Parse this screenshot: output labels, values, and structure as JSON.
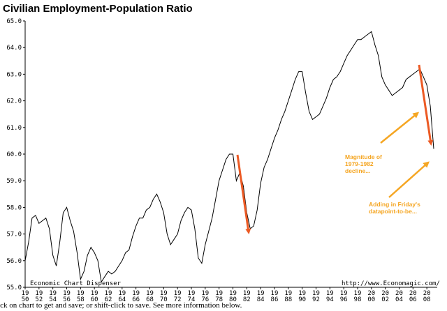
{
  "chart_data": {
    "type": "line",
    "title": "Civilian Employment-Population Ratio",
    "xlabel": "",
    "ylabel": "",
    "ylim": [
      55.0,
      65.0
    ],
    "xlim": [
      1950,
      2009.5
    ],
    "y_ticks": [
      "65.0",
      "64.0",
      "63.0",
      "62.0",
      "61.0",
      "60.0",
      "59.0",
      "58.0",
      "57.0",
      "56.0",
      "55.0"
    ],
    "x_ticks": [
      {
        "top": "19",
        "bottom": "50"
      },
      {
        "top": "19",
        "bottom": "52"
      },
      {
        "top": "19",
        "bottom": "54"
      },
      {
        "top": "19",
        "bottom": "56"
      },
      {
        "top": "19",
        "bottom": "58"
      },
      {
        "top": "19",
        "bottom": "60"
      },
      {
        "top": "19",
        "bottom": "62"
      },
      {
        "top": "19",
        "bottom": "64"
      },
      {
        "top": "19",
        "bottom": "66"
      },
      {
        "top": "19",
        "bottom": "68"
      },
      {
        "top": "19",
        "bottom": "70"
      },
      {
        "top": "19",
        "bottom": "72"
      },
      {
        "top": "19",
        "bottom": "74"
      },
      {
        "top": "19",
        "bottom": "76"
      },
      {
        "top": "19",
        "bottom": "78"
      },
      {
        "top": "19",
        "bottom": "80"
      },
      {
        "top": "19",
        "bottom": "82"
      },
      {
        "top": "19",
        "bottom": "84"
      },
      {
        "top": "19",
        "bottom": "86"
      },
      {
        "top": "19",
        "bottom": "88"
      },
      {
        "top": "19",
        "bottom": "90"
      },
      {
        "top": "19",
        "bottom": "92"
      },
      {
        "top": "19",
        "bottom": "94"
      },
      {
        "top": "19",
        "bottom": "96"
      },
      {
        "top": "19",
        "bottom": "98"
      },
      {
        "top": "20",
        "bottom": "00"
      },
      {
        "top": "20",
        "bottom": "02"
      },
      {
        "top": "20",
        "bottom": "04"
      },
      {
        "top": "20",
        "bottom": "06"
      },
      {
        "top": "20",
        "bottom": "08"
      }
    ],
    "grid": false,
    "series": [
      {
        "x": [
          1950.0,
          1950.5,
          1951.0,
          1951.5,
          1952.0,
          1952.5,
          1953.0,
          1953.5,
          1954.0,
          1954.5,
          1955.0,
          1955.5,
          1956.0,
          1956.5,
          1957.0,
          1957.5,
          1958.0,
          1958.5,
          1959.0,
          1959.5,
          1960.0,
          1960.5,
          1961.0,
          1961.5,
          1962.0,
          1962.5,
          1963.0,
          1963.5,
          1964.0,
          1964.5,
          1965.0,
          1965.5,
          1966.0,
          1966.5,
          1967.0,
          1967.5,
          1968.0,
          1968.5,
          1969.0,
          1969.5,
          1970.0,
          1970.5,
          1971.0,
          1971.5,
          1972.0,
          1972.5,
          1973.0,
          1973.5,
          1974.0,
          1974.5,
          1975.0,
          1975.5,
          1976.0,
          1976.5,
          1977.0,
          1977.5,
          1978.0,
          1978.5,
          1979.0,
          1979.5,
          1980.0,
          1980.5,
          1981.0,
          1981.5,
          1982.0,
          1982.5,
          1983.0,
          1983.5,
          1984.0,
          1984.5,
          1985.0,
          1985.5,
          1986.0,
          1986.5,
          1987.0,
          1987.5,
          1988.0,
          1988.5,
          1989.0,
          1989.5,
          1990.0,
          1990.5,
          1991.0,
          1991.5,
          1992.0,
          1992.5,
          1993.0,
          1993.5,
          1994.0,
          1994.5,
          1995.0,
          1995.5,
          1996.0,
          1996.5,
          1997.0,
          1997.5,
          1998.0,
          1998.5,
          1999.0,
          1999.5,
          2000.0,
          2000.5,
          2001.0,
          2001.5,
          2002.0,
          2002.5,
          2003.0,
          2003.5,
          2004.0,
          2004.5,
          2005.0,
          2005.5,
          2006.0,
          2006.5,
          2007.0,
          2007.5,
          2008.0,
          2008.5,
          2009.0
        ],
        "values": [
          56.0,
          56.7,
          57.6,
          57.7,
          57.4,
          57.5,
          57.6,
          57.2,
          56.2,
          55.8,
          56.7,
          57.8,
          58.0,
          57.5,
          57.1,
          56.3,
          55.3,
          55.6,
          56.2,
          56.5,
          56.3,
          56.0,
          55.2,
          55.4,
          55.6,
          55.5,
          55.6,
          55.8,
          56.0,
          56.3,
          56.4,
          56.9,
          57.3,
          57.6,
          57.6,
          57.9,
          58.0,
          58.3,
          58.5,
          58.2,
          57.8,
          57.0,
          56.6,
          56.8,
          57.0,
          57.5,
          57.8,
          58.0,
          57.9,
          57.2,
          56.1,
          55.9,
          56.6,
          57.1,
          57.6,
          58.3,
          59.0,
          59.4,
          59.8,
          60.0,
          60.0,
          59.0,
          59.3,
          58.8,
          57.8,
          57.2,
          57.3,
          57.9,
          58.9,
          59.5,
          59.8,
          60.2,
          60.6,
          60.9,
          61.3,
          61.6,
          62.0,
          62.4,
          62.8,
          63.1,
          63.1,
          62.3,
          61.6,
          61.3,
          61.4,
          61.5,
          61.8,
          62.1,
          62.5,
          62.8,
          62.9,
          63.1,
          63.4,
          63.7,
          63.9,
          64.1,
          64.3,
          64.3,
          64.4,
          64.5,
          64.6,
          64.1,
          63.7,
          62.9,
          62.6,
          62.4,
          62.2,
          62.3,
          62.4,
          62.5,
          62.8,
          62.9,
          63.0,
          63.1,
          63.2,
          62.9,
          62.6,
          61.8,
          60.2
        ]
      }
    ],
    "watermark_left": "Economic Chart Dispenser",
    "watermark_right": "http://www.Economagic.com/",
    "annotations": [
      {
        "lines": [
          "Magnitude of",
          "1979-1982",
          "decline..."
        ]
      },
      {
        "lines": [
          "Adding in Friday's",
          "datapoint-to-be..."
        ]
      }
    ],
    "colors": {
      "line": "#000000",
      "annotation": "#f5a623",
      "arrow_decline": "#ec5a24",
      "arrow_pointer": "#f5a623"
    }
  },
  "footer_text": "lick on chart to get and save; or shift-click to save. See more information below."
}
